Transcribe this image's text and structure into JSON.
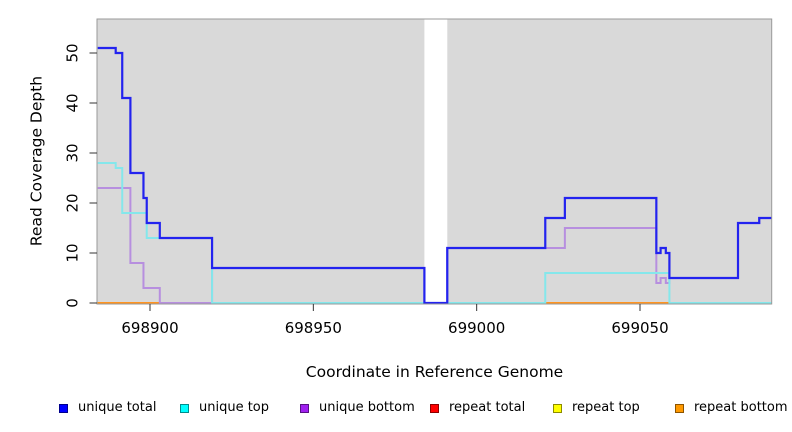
{
  "axes": {
    "x": {
      "label": "Coordinate in Reference Genome",
      "ticks": [
        698900,
        698950,
        699000,
        699050
      ],
      "range": [
        698883.8,
        699090.3
      ]
    },
    "y": {
      "label": "Read Coverage Depth",
      "ticks": [
        0,
        10,
        20,
        30,
        40,
        50
      ],
      "range": [
        0,
        56
      ]
    }
  },
  "chart_data": {
    "type": "line",
    "step": "after",
    "panel_bg": "#d9d9d9",
    "grid": false,
    "gap_region": {
      "from": 698984,
      "to": 698991
    },
    "x_end": 699090.3,
    "series": [
      {
        "name": "unique total",
        "color": "#2323ef",
        "points": [
          [
            698884,
            51
          ],
          [
            698889.5,
            50
          ],
          [
            698891.5,
            41
          ],
          [
            698894,
            26
          ],
          [
            698898,
            21
          ],
          [
            698899,
            16
          ],
          [
            698903,
            13
          ],
          [
            698919,
            7
          ],
          [
            698984,
            0
          ],
          [
            698991,
            11
          ],
          [
            699021,
            17
          ],
          [
            699027,
            21
          ],
          [
            699055,
            10
          ],
          [
            699056.3,
            11
          ],
          [
            699057.9,
            10
          ],
          [
            699059,
            5
          ],
          [
            699080,
            16
          ],
          [
            699086.5,
            17
          ]
        ]
      },
      {
        "name": "unique top",
        "color": "#84e7eb",
        "points": [
          [
            698884,
            28
          ],
          [
            698889.5,
            27
          ],
          [
            698891.5,
            18
          ],
          [
            698899,
            13
          ],
          [
            698919,
            0
          ],
          [
            699021,
            6
          ],
          [
            699059,
            0
          ]
        ]
      },
      {
        "name": "unique bottom",
        "color": "#b78fdf",
        "points": [
          [
            698884,
            23
          ],
          [
            698894,
            8
          ],
          [
            698898,
            3
          ],
          [
            698903,
            0
          ],
          [
            698919,
            7
          ],
          [
            698984,
            0
          ],
          [
            698991,
            11
          ],
          [
            699027,
            15
          ],
          [
            699055,
            4
          ],
          [
            699056.3,
            5
          ],
          [
            699057.9,
            4
          ],
          [
            699059,
            5
          ],
          [
            699080,
            16
          ],
          [
            699086.5,
            17
          ]
        ]
      },
      {
        "name": "repeat total",
        "color": "#dd2222",
        "points": [
          [
            698884,
            0
          ]
        ]
      },
      {
        "name": "repeat top",
        "color": "#f0e020",
        "points": [
          [
            698884,
            0
          ]
        ]
      },
      {
        "name": "repeat bottom",
        "color": "#ff9420",
        "points": [
          [
            698884,
            0
          ]
        ]
      }
    ],
    "baseline_blend_segments": [
      {
        "from": 698884,
        "to": 698902.5,
        "color": "#ff9420"
      },
      {
        "from": 698902.5,
        "to": 698919,
        "color": "#d04878"
      },
      {
        "from": 698919,
        "to": 699021,
        "color": "#8fd494"
      },
      {
        "from": 699021,
        "to": 699059,
        "color": "#ff9420"
      },
      {
        "from": 699059,
        "to": 699090.3,
        "color": "#8fd494"
      }
    ]
  },
  "legend": {
    "items": [
      {
        "label": "unique total",
        "color": "#0000ff"
      },
      {
        "label": "unique top",
        "color": "#00ffff"
      },
      {
        "label": "unique bottom",
        "color": "#a020f0"
      },
      {
        "label": "repeat total",
        "color": "#ff0000"
      },
      {
        "label": "repeat top",
        "color": "#ffff00"
      },
      {
        "label": "repeat bottom",
        "color": "#ff9900"
      }
    ]
  }
}
